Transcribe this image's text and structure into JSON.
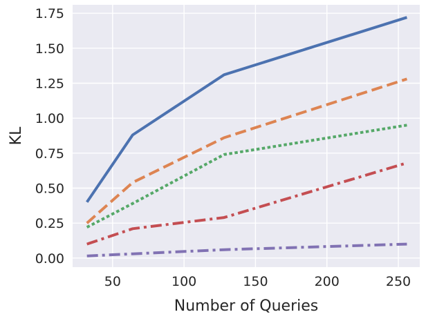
{
  "chart_data": {
    "type": "line",
    "title": "",
    "xlabel": "Number of Queries",
    "ylabel": "KL",
    "xlim": [
      22,
      265
    ],
    "ylim": [
      -0.065,
      1.81
    ],
    "xticks": [
      50,
      100,
      150,
      200,
      250
    ],
    "yticks": [
      0.0,
      0.25,
      0.5,
      0.75,
      1.0,
      1.25,
      1.5,
      1.75
    ],
    "xtick_labels": [
      "50",
      "100",
      "150",
      "200",
      "250"
    ],
    "ytick_labels": [
      "0.00",
      "0.25",
      "0.50",
      "0.75",
      "1.00",
      "1.25",
      "1.50",
      "1.75"
    ],
    "grid": true,
    "background": "#EAEAF2",
    "x": [
      32,
      64,
      128,
      256
    ],
    "series": [
      {
        "values": [
          0.4,
          0.88,
          1.31,
          1.72
        ],
        "color": "#4C72B0",
        "style": "solid"
      },
      {
        "values": [
          0.25,
          0.54,
          0.86,
          1.28
        ],
        "color": "#DD8452",
        "style": "dashed"
      },
      {
        "values": [
          0.22,
          0.39,
          0.74,
          0.95
        ],
        "color": "#55A868",
        "style": "dotted"
      },
      {
        "values": [
          0.1,
          0.21,
          0.29,
          0.68
        ],
        "color": "#C44E52",
        "style": "dashdot"
      },
      {
        "values": [
          0.015,
          0.03,
          0.06,
          0.1
        ],
        "color": "#8172B3",
        "style": "dashdot"
      }
    ]
  }
}
